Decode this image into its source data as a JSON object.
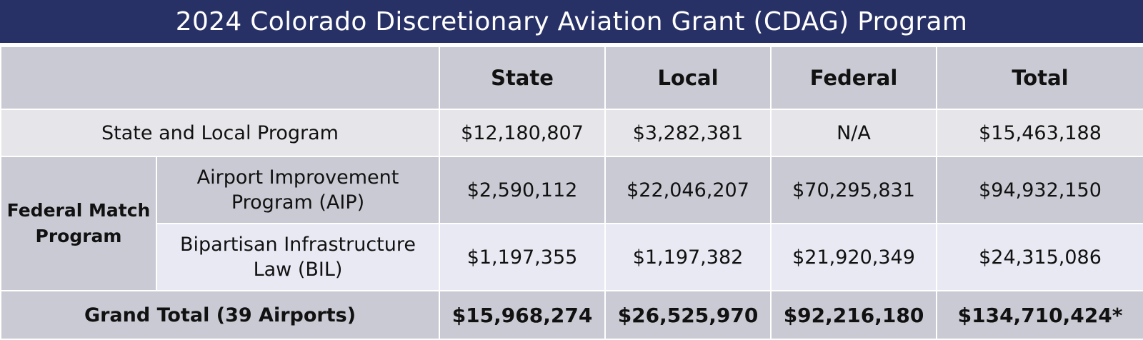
{
  "title": "2024 Colorado Discretionary Aviation Grant (CDAG) Program",
  "columns": [
    "State",
    "Local",
    "Federal",
    "Total"
  ],
  "rows": {
    "state_local": {
      "label": "State and Local Program",
      "values": [
        "$12,180,807",
        "$3,282,381",
        "N/A",
        "$15,463,188"
      ]
    },
    "federal_match_label": "Federal Match Program",
    "aip": {
      "label": "Airport Improvement Program (AIP)",
      "values": [
        "$2,590,112",
        "$22,046,207",
        "$70,295,831",
        "$94,932,150"
      ]
    },
    "bil": {
      "label": "Bipartisan Infrastructure Law (BIL)",
      "values": [
        "$1,197,355",
        "$1,197,382",
        "$21,920,349",
        "$24,315,086"
      ]
    },
    "grand_total": {
      "label": "Grand Total (39 Airports)",
      "values": [
        "$15,968,274",
        "$26,525,970",
        "$92,216,180",
        "$134,710,424*"
      ]
    }
  }
}
